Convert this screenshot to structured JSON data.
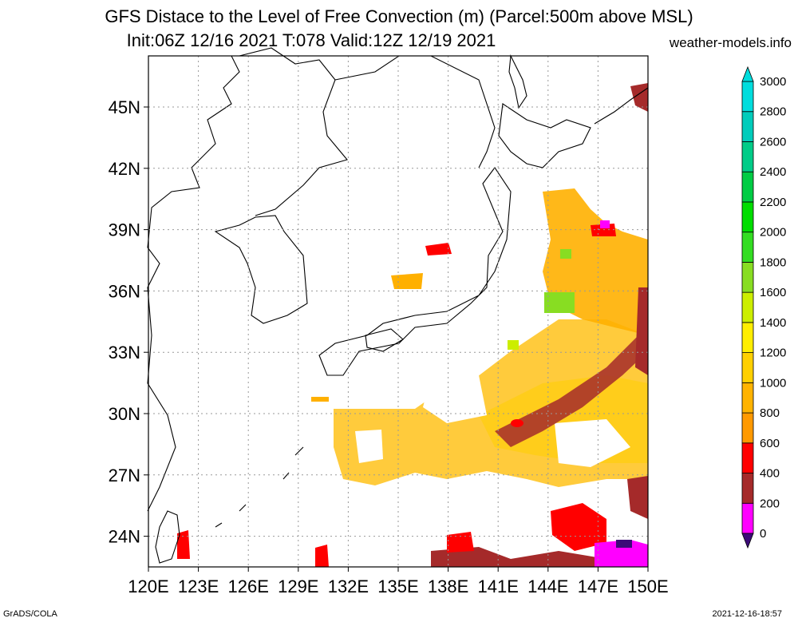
{
  "header": {
    "title_line1": "GFS Distace to the Level of Free Convection (m) (Parcel:500m above MSL)",
    "title_line2": "Init:06Z 12/16 2021 T:078 Valid:12Z 12/19 2021",
    "site": "weather-models.info"
  },
  "footer": {
    "left": "GrADS/COLA",
    "right": "2021-12-16-18:57"
  },
  "map": {
    "lon_range": [
      120,
      150
    ],
    "lat_range": [
      22.5,
      47.5
    ],
    "lon_ticks": [
      "120E",
      "123E",
      "126E",
      "129E",
      "132E",
      "135E",
      "138E",
      "141E",
      "144E",
      "147E",
      "150E"
    ],
    "lat_ticks": [
      "24N",
      "27N",
      "30N",
      "33N",
      "36N",
      "39N",
      "42N",
      "45N"
    ],
    "grid": true
  },
  "colorbar": {
    "labels": [
      "0",
      "200",
      "400",
      "600",
      "800",
      "1000",
      "1200",
      "1400",
      "1600",
      "1800",
      "2000",
      "2200",
      "2400",
      "2600",
      "2800",
      "3000"
    ],
    "colors": [
      "#3c0a78",
      "#ff00ff",
      "#a52a2a",
      "#ff0000",
      "#ff9900",
      "#ffb300",
      "#ffd000",
      "#ffee00",
      "#ccee00",
      "#88dd22",
      "#33dd22",
      "#00dd00",
      "#00cc44",
      "#00cc88",
      "#00ccbb",
      "#00dddd"
    ]
  }
}
